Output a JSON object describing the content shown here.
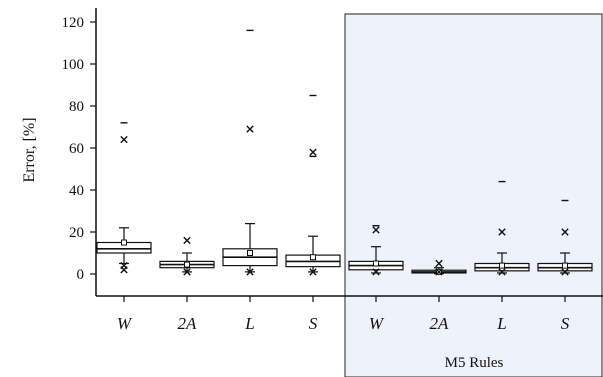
{
  "chart_data": {
    "type": "box",
    "ylabel": "Error, [%]",
    "ylim": [
      -5,
      125
    ],
    "yticks": [
      0,
      20,
      40,
      60,
      80,
      100,
      120
    ],
    "categories": [
      "W",
      "2A",
      "L",
      "S",
      "W",
      "2A",
      "L",
      "S"
    ],
    "region": {
      "label": "M5 Rules",
      "start_index": 4,
      "end_index": 7,
      "color": "#eef2fa"
    },
    "boxes": [
      {
        "q1": 10,
        "median": 12,
        "q3": 15,
        "whisker_low": 5,
        "whisker_high": 22,
        "mean": 15,
        "outliers_x": [
          64,
          4,
          2
        ],
        "outliers_dash": [
          72
        ]
      },
      {
        "q1": 3,
        "median": 4.5,
        "q3": 6,
        "whisker_low": 1,
        "whisker_high": 10,
        "mean": 4.5,
        "outliers_x": [
          16,
          1
        ],
        "outliers_dash": []
      },
      {
        "q1": 4,
        "median": 8,
        "q3": 12,
        "whisker_low": 1,
        "whisker_high": 24,
        "mean": 10,
        "outliers_x": [
          69,
          1
        ],
        "outliers_dash": [
          116
        ]
      },
      {
        "q1": 3.5,
        "median": 6,
        "q3": 9,
        "whisker_low": 1,
        "whisker_high": 18,
        "mean": 8,
        "outliers_x": [
          58,
          1
        ],
        "outliers_dash": [
          85,
          56
        ]
      },
      {
        "q1": 2,
        "median": 4,
        "q3": 6,
        "whisker_low": 0.5,
        "whisker_high": 13,
        "mean": 5,
        "outliers_x": [
          21,
          1
        ],
        "outliers_dash": [
          23
        ]
      },
      {
        "q1": 0.5,
        "median": 1,
        "q3": 1.8,
        "whisker_low": 0.2,
        "whisker_high": 3,
        "mean": 1,
        "outliers_x": [
          5,
          1
        ],
        "outliers_dash": []
      },
      {
        "q1": 1.5,
        "median": 3,
        "q3": 5,
        "whisker_low": 0.5,
        "whisker_high": 10,
        "mean": 4,
        "outliers_x": [
          20,
          1
        ],
        "outliers_dash": [
          44
        ]
      },
      {
        "q1": 1.5,
        "median": 3,
        "q3": 5,
        "whisker_low": 0.5,
        "whisker_high": 10,
        "mean": 4,
        "outliers_x": [
          20,
          1
        ],
        "outliers_dash": [
          35
        ]
      }
    ]
  }
}
